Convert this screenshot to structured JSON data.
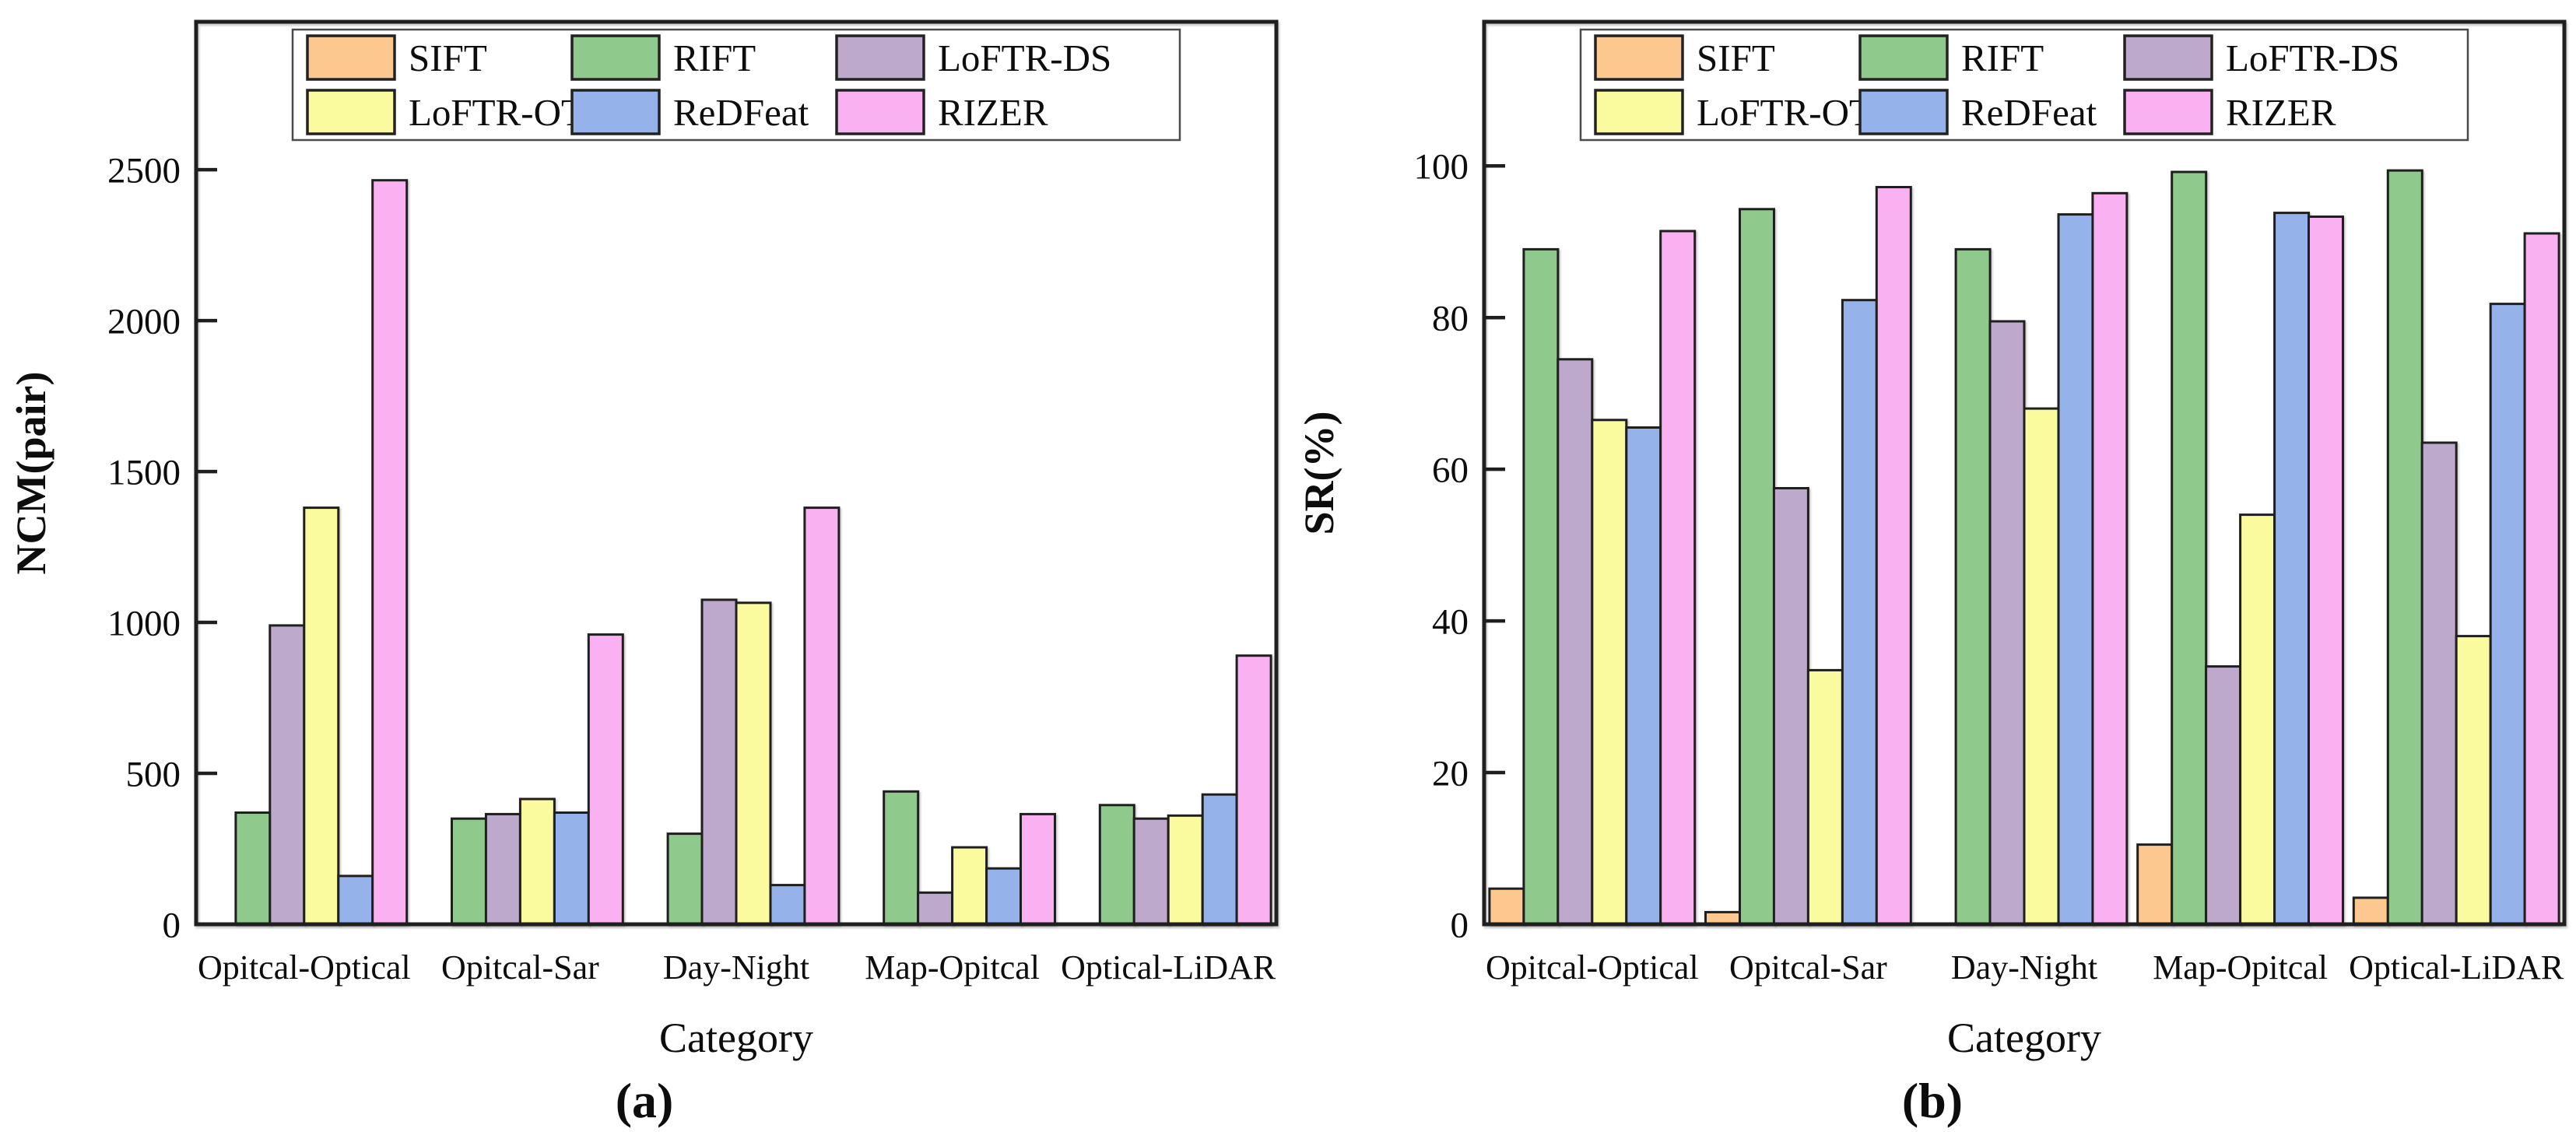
{
  "figure": {
    "background": "#ffffff",
    "frame_color": "#1f1f1f",
    "text_color": "#0d0d0d"
  },
  "legend": {
    "rows": 2,
    "columns": 3,
    "items": [
      {
        "label": "SIFT",
        "color": "#FCC890"
      },
      {
        "label": "RIFT",
        "color": "#8FC98B"
      },
      {
        "label": "LoFTR-DS",
        "color": "#BCA9CC"
      },
      {
        "label": "LoFTR-OT",
        "color": "#FAFA9E"
      },
      {
        "label": "ReDFeat",
        "color": "#96B2EB"
      },
      {
        "label": "RIZER",
        "color": "#FAB1F1"
      }
    ]
  },
  "chart_data": [
    {
      "type": "bar",
      "panel_label": "(a)",
      "title": "",
      "xlabel": "Category",
      "ylabel": "NCM(pair)",
      "ylim": [
        0,
        2990
      ],
      "yticks": [
        0,
        500,
        1000,
        1500,
        2000,
        2500
      ],
      "grid": false,
      "legend_position": "top",
      "categories": [
        "Opitcal-Optical",
        "Opitcal-Sar",
        "Day-Night",
        "Map-Opitcal",
        "Optical-LiDAR"
      ],
      "series": [
        {
          "name": "SIFT",
          "color": "#FCC890",
          "values": [
            0,
            0,
            0,
            0,
            0
          ]
        },
        {
          "name": "RIFT",
          "color": "#8FC98B",
          "values": [
            370,
            350,
            300,
            440,
            395
          ]
        },
        {
          "name": "LoFTR-DS",
          "color": "#BCA9CC",
          "values": [
            990,
            365,
            1075,
            105,
            350
          ]
        },
        {
          "name": "LoFTR-OT",
          "color": "#FAFA9E",
          "values": [
            1380,
            415,
            1065,
            255,
            360
          ]
        },
        {
          "name": "ReDFeat",
          "color": "#96B2EB",
          "values": [
            160,
            370,
            130,
            185,
            430
          ]
        },
        {
          "name": "RIZER",
          "color": "#FAB1F1",
          "values": [
            2465,
            960,
            1380,
            365,
            890
          ]
        }
      ]
    },
    {
      "type": "bar",
      "panel_label": "(b)",
      "title": "",
      "xlabel": "Category",
      "ylabel": "SR(%)",
      "ylim": [
        0,
        119
      ],
      "yticks": [
        0,
        20,
        40,
        60,
        80,
        100
      ],
      "grid": false,
      "legend_position": "top",
      "categories": [
        "Opitcal-Optical",
        "Opitcal-Sar",
        "Day-Night",
        "Map-Opitcal",
        "Optical-LiDAR"
      ],
      "series": [
        {
          "name": "SIFT",
          "color": "#FCC890",
          "values": [
            4.7,
            1.6,
            0,
            10.5,
            3.5
          ]
        },
        {
          "name": "RIFT",
          "color": "#8FC98B",
          "values": [
            89,
            94.3,
            89,
            99.2,
            99.4
          ]
        },
        {
          "name": "LoFTR-DS",
          "color": "#BCA9CC",
          "values": [
            74.5,
            57.5,
            79.5,
            34,
            63.5
          ]
        },
        {
          "name": "LoFTR-OT",
          "color": "#FAFA9E",
          "values": [
            66.5,
            33.5,
            68,
            54,
            38
          ]
        },
        {
          "name": "ReDFeat",
          "color": "#96B2EB",
          "values": [
            65.5,
            82.3,
            93.6,
            93.8,
            81.8
          ]
        },
        {
          "name": "RIZER",
          "color": "#FAB1F1",
          "values": [
            91.4,
            97.2,
            96.4,
            93.3,
            91.1
          ]
        }
      ]
    }
  ]
}
